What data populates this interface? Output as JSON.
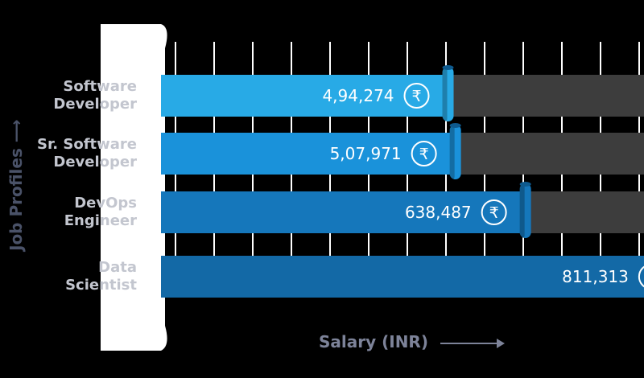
{
  "chart_data": {
    "type": "bar",
    "orientation": "horizontal",
    "categories": [
      "Software\nDeveloper",
      "Sr. Software\nDeveloper",
      "DevOps\nEngineer",
      "Data\nScientist"
    ],
    "values": [
      494274,
      507971,
      638487,
      811313
    ],
    "value_labels": [
      "4,94,274",
      "5,07,971",
      "638,487",
      "811,313"
    ],
    "xlabel": "Salary (INR)",
    "ylabel": "Job Profiles",
    "currency_symbol": "₹",
    "xlim": [
      0,
      900000
    ],
    "grid": true,
    "colors": {
      "bars": [
        "#28aae6",
        "#1a92da",
        "#1577bb",
        "#1369a6"
      ],
      "track": "#3d3d3d",
      "grid": "#ffffff",
      "panel": "#ffffff"
    }
  }
}
